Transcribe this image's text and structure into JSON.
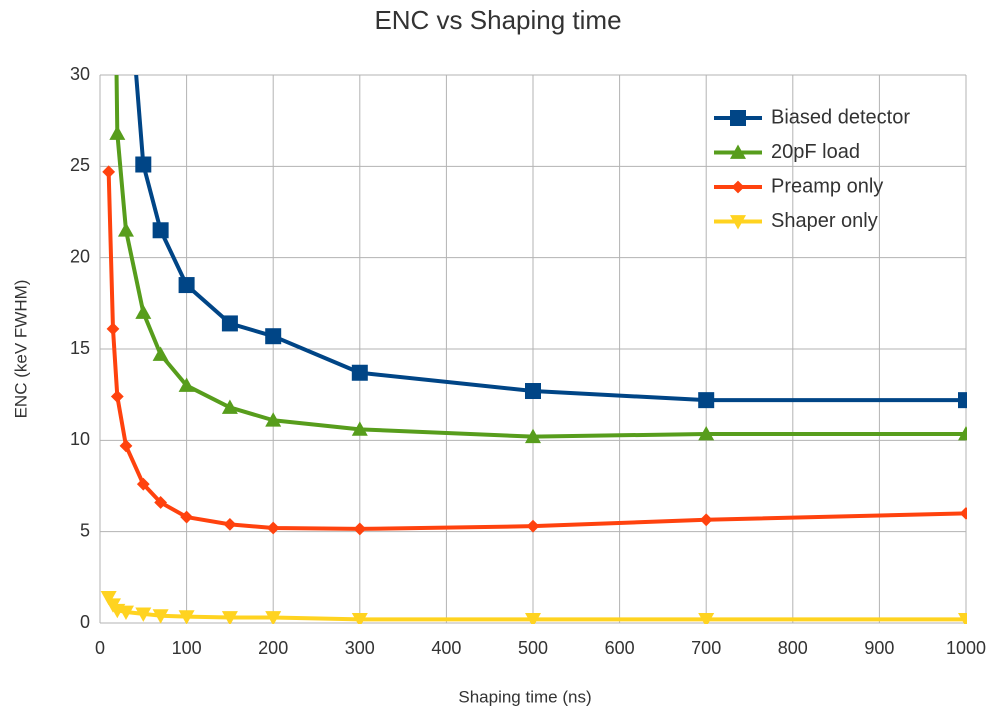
{
  "chart_data": {
    "type": "line",
    "title": "ENC vs Shaping time",
    "x_label": "Shaping time (ns)",
    "y_label": "ENC (keV FWHM)",
    "x": [
      10,
      15,
      20,
      30,
      50,
      70,
      100,
      150,
      200,
      300,
      500,
      700,
      1000
    ],
    "series": [
      {
        "name": "Biased detector",
        "color": "#004586",
        "marker": "square",
        "values": [
          null,
          null,
          null,
          37,
          25.1,
          21.5,
          18.5,
          16.4,
          15.7,
          13.7,
          12.7,
          12.2,
          12.2
        ]
      },
      {
        "name": "20pF load",
        "color": "#579d1c",
        "marker": "triangle-up",
        "values": [
          null,
          45,
          26.8,
          21.5,
          17,
          14.7,
          13,
          11.8,
          11.1,
          10.6,
          10.2,
          10.35,
          10.35
        ]
      },
      {
        "name": "Preamp only",
        "color": "#ff420e",
        "marker": "diamond",
        "values": [
          24.7,
          16.1,
          12.4,
          9.7,
          7.6,
          6.6,
          5.8,
          5.4,
          5.2,
          5.15,
          5.3,
          5.65,
          6.0
        ]
      },
      {
        "name": "Shaper only",
        "color": "#ffd320",
        "marker": "triangle-down",
        "values": [
          1.4,
          1.0,
          0.7,
          0.6,
          0.5,
          0.4,
          0.35,
          0.3,
          0.3,
          0.2,
          0.2,
          0.2,
          0.2
        ]
      }
    ],
    "xlim": [
      0,
      1000
    ],
    "xticks": [
      0,
      100,
      200,
      300,
      400,
      500,
      600,
      700,
      800,
      900,
      1000
    ],
    "ylim": [
      0,
      30
    ],
    "yticks": [
      0,
      5,
      10,
      15,
      20,
      25,
      30
    ],
    "grid": true,
    "legend": "upper-right"
  }
}
